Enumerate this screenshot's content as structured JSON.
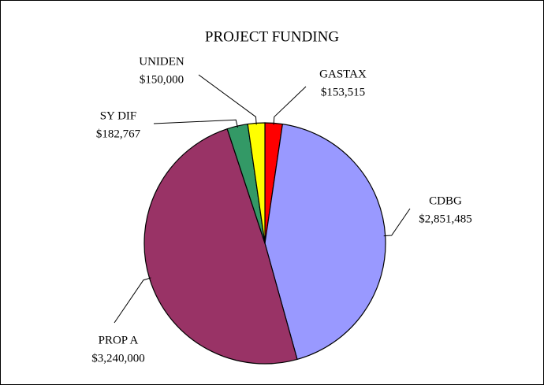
{
  "chart_data": {
    "type": "pie",
    "title": "PROJECT FUNDING",
    "categories": [
      "GASTAX",
      "CDBG",
      "PROP A",
      "SY DIF",
      "UNIDEN"
    ],
    "values": [
      153515,
      2851485,
      3240000,
      182767,
      150000
    ],
    "value_labels": [
      "$153,515",
      "$2,851,485",
      "$3,240,000",
      "$182,767",
      "$150,000"
    ],
    "colors": [
      "#ff0000",
      "#9999ff",
      "#993366",
      "#339966",
      "#ffff00"
    ]
  }
}
